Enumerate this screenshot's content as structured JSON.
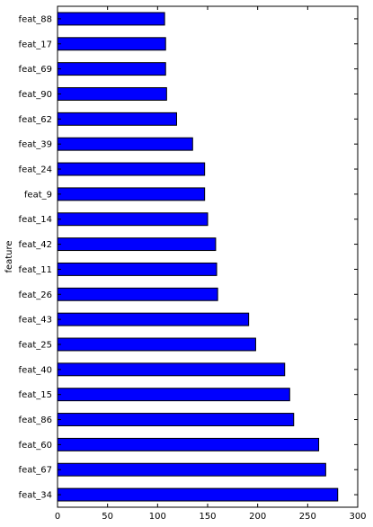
{
  "chart_data": {
    "type": "bar",
    "orientation": "horizontal",
    "title": "",
    "xlabel": "",
    "ylabel": "feature",
    "xlim": [
      0,
      300
    ],
    "x_ticks": [
      0,
      50,
      100,
      150,
      200,
      250,
      300
    ],
    "grid": false,
    "legend": "none",
    "bar_color": "#0000ff",
    "categories": [
      "feat_88",
      "feat_17",
      "feat_69",
      "feat_90",
      "feat_62",
      "feat_39",
      "feat_24",
      "feat_9",
      "feat_14",
      "feat_42",
      "feat_11",
      "feat_26",
      "feat_43",
      "feat_25",
      "feat_40",
      "feat_15",
      "feat_86",
      "feat_60",
      "feat_67",
      "feat_34"
    ],
    "values": [
      107,
      108,
      108,
      109,
      119,
      135,
      147,
      147,
      150,
      158,
      159,
      160,
      191,
      198,
      227,
      232,
      236,
      261,
      268,
      280
    ]
  }
}
